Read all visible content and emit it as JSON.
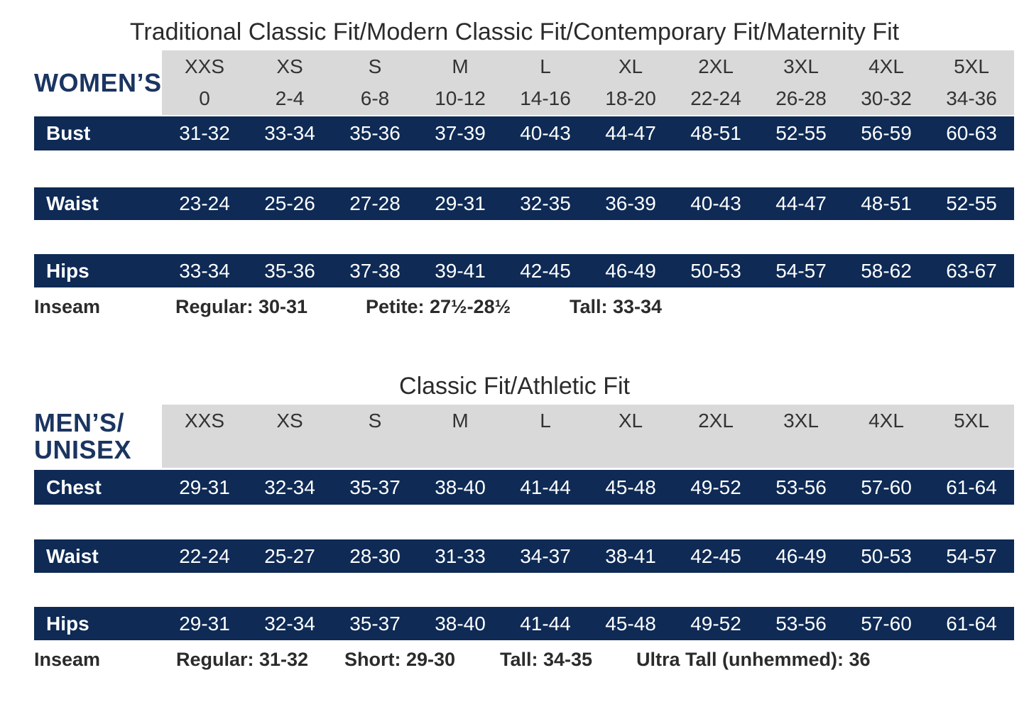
{
  "women": {
    "title": "Traditional Classic Fit/Modern Classic Fit/Contemporary Fit/Maternity Fit",
    "brand_label": "WOMEN’S",
    "sizes": [
      "XXS",
      "XS",
      "S",
      "M",
      "L",
      "XL",
      "2XL",
      "3XL",
      "4XL",
      "5XL"
    ],
    "numeric_sizes": [
      "0",
      "2-4",
      "6-8",
      "10-12",
      "14-16",
      "18-20",
      "22-24",
      "26-28",
      "30-32",
      "34-36"
    ],
    "rows": [
      {
        "label": "Bust",
        "values": [
          "31-32",
          "33-34",
          "35-36",
          "37-39",
          "40-43",
          "44-47",
          "48-51",
          "52-55",
          "56-59",
          "60-63"
        ]
      },
      {
        "label": "Waist",
        "values": [
          "23-24",
          "25-26",
          "27-28",
          "29-31",
          "32-35",
          "36-39",
          "40-43",
          "44-47",
          "48-51",
          "52-55"
        ]
      },
      {
        "label": "Hips",
        "values": [
          "33-34",
          "35-36",
          "37-38",
          "39-41",
          "42-45",
          "46-49",
          "50-53",
          "54-57",
          "58-62",
          "63-67"
        ]
      }
    ],
    "inseam_label": "Inseam",
    "inseam_items": [
      "Regular: 30-31",
      "Petite: 27½-28½",
      "Tall: 33-34"
    ]
  },
  "men": {
    "title": "Classic Fit/Athletic Fit",
    "brand_line1": "MEN’S/",
    "brand_line2": "UNISEX",
    "sizes": [
      "XXS",
      "XS",
      "S",
      "M",
      "L",
      "XL",
      "2XL",
      "3XL",
      "4XL",
      "5XL"
    ],
    "rows": [
      {
        "label": "Chest",
        "values": [
          "29-31",
          "32-34",
          "35-37",
          "38-40",
          "41-44",
          "45-48",
          "49-52",
          "53-56",
          "57-60",
          "61-64"
        ]
      },
      {
        "label": "Waist",
        "values": [
          "22-24",
          "25-27",
          "28-30",
          "31-33",
          "34-37",
          "38-41",
          "42-45",
          "46-49",
          "50-53",
          "54-57"
        ]
      },
      {
        "label": "Hips",
        "values": [
          "29-31",
          "32-34",
          "35-37",
          "38-40",
          "41-44",
          "45-48",
          "49-52",
          "53-56",
          "57-60",
          "61-64"
        ]
      }
    ],
    "inseam_label": "Inseam",
    "inseam_items": [
      "Regular: 31-32",
      "Short: 29-30",
      "Tall: 34-35",
      "Ultra Tall (unhemmed): 36"
    ]
  },
  "colors": {
    "navy": "#0e2a55",
    "brand_blue": "#1b3561",
    "header_gray": "#d9d9d9"
  }
}
